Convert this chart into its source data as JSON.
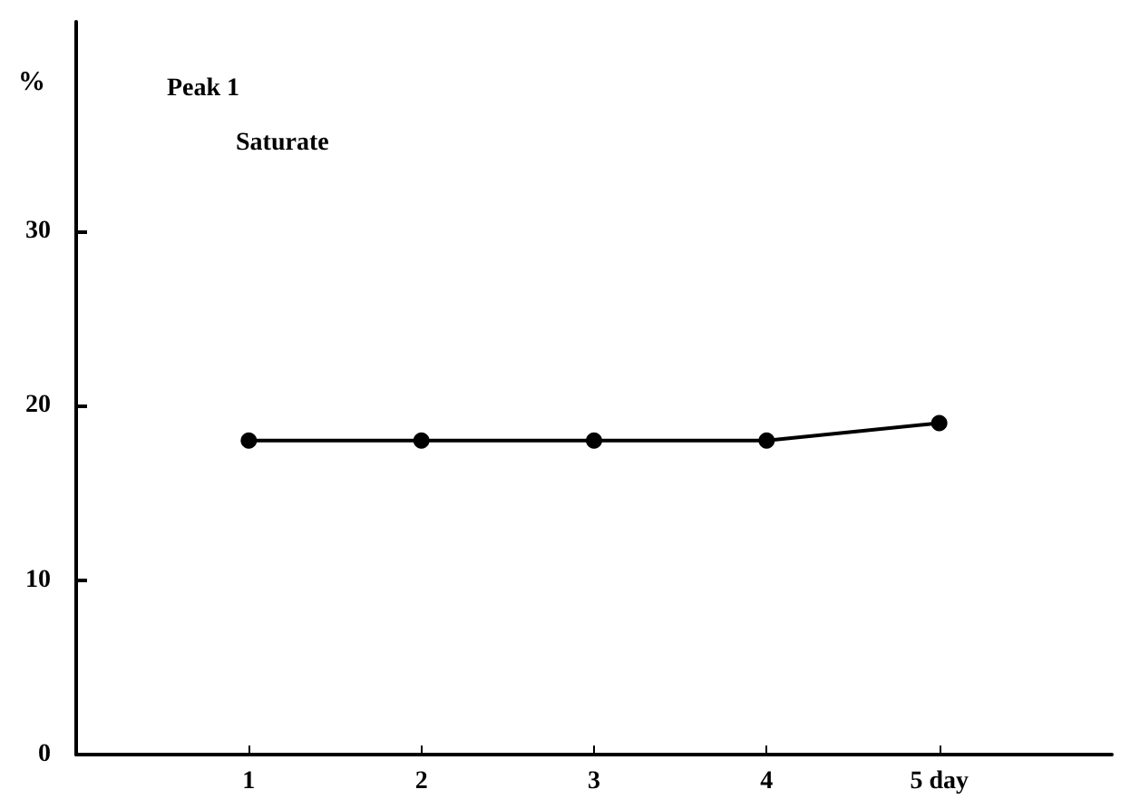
{
  "chart_data": {
    "type": "line",
    "ylabel": "%",
    "annotations": [
      "Peak 1",
      "Saturate"
    ],
    "x": [
      1,
      2,
      3,
      4,
      5
    ],
    "series": [
      {
        "color": "#000000",
        "values": [
          18,
          18,
          18,
          18,
          19
        ]
      }
    ],
    "xlim": [
      0,
      6
    ],
    "xticks": [
      1,
      2,
      3,
      4,
      {
        "value": 5,
        "label": "5 day"
      }
    ],
    "ylim": [
      0,
      42
    ],
    "yticks": [
      0,
      10,
      20,
      30
    ],
    "marker": "circle",
    "line_style": "solid"
  }
}
